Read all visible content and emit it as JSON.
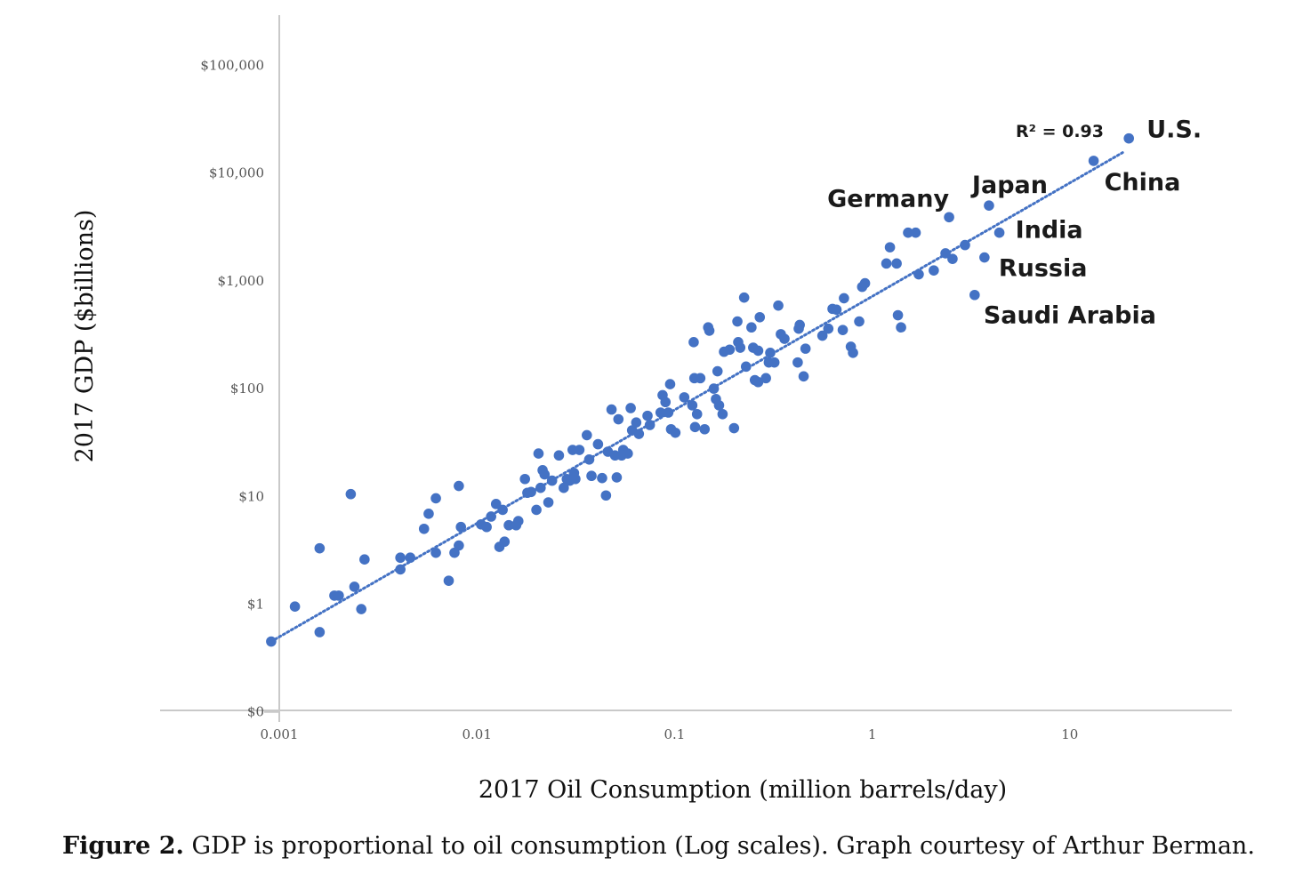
{
  "chart_data": {
    "type": "scatter",
    "title": "",
    "xlabel": "2017 Oil Consumption (million barrels/day)",
    "ylabel": "2017 GDP ($billions)",
    "xscale": "log",
    "yscale": "log",
    "xlim": [
      0.00085,
      70
    ],
    "ylim": [
      0.1,
      300000
    ],
    "x_ticks": [
      {
        "value": 0.001,
        "label": "0.001"
      },
      {
        "value": 0.01,
        "label": "0.01"
      },
      {
        "value": 0.1,
        "label": "0.1"
      },
      {
        "value": 1,
        "label": "1"
      },
      {
        "value": 10,
        "label": "10"
      }
    ],
    "y_ticks": [
      {
        "value": 0.1,
        "label": "$0"
      },
      {
        "value": 1,
        "label": "$1"
      },
      {
        "value": 10,
        "label": "$10"
      },
      {
        "value": 100,
        "label": "$100"
      },
      {
        "value": 1000,
        "label": "$1,000"
      },
      {
        "value": 10000,
        "label": "$10,000"
      },
      {
        "value": 100000,
        "label": "$100,000"
      }
    ],
    "marker_color": "#4472c4",
    "trendline": {
      "style": "dotted",
      "color": "#4472c4",
      "x": [
        0.00091,
        18.5
      ],
      "y": [
        0.45,
        15500
      ],
      "r_squared_label": "R² = 0.93"
    },
    "labeled_points": [
      {
        "name": "U.S.",
        "x": 19.9,
        "y": 21000
      },
      {
        "name": "China",
        "x": 13.2,
        "y": 13000
      },
      {
        "name": "Japan",
        "x": 3.9,
        "y": 5000
      },
      {
        "name": "Germany",
        "x": 2.45,
        "y": 3900
      },
      {
        "name": "India",
        "x": 4.4,
        "y": 2800
      },
      {
        "name": "Russia",
        "x": 3.7,
        "y": 1650
      },
      {
        "name": "Saudi Arabia",
        "x": 3.3,
        "y": 740
      }
    ],
    "points": [
      [
        0.00091,
        0.45
      ],
      [
        0.0012,
        0.95
      ],
      [
        0.0016,
        0.55
      ],
      [
        0.0016,
        3.3
      ],
      [
        0.0019,
        1.2
      ],
      [
        0.002,
        1.2
      ],
      [
        0.0023,
        10.5
      ],
      [
        0.0024,
        1.45
      ],
      [
        0.0026,
        0.9
      ],
      [
        0.0027,
        2.6
      ],
      [
        0.0041,
        2.1
      ],
      [
        0.0041,
        2.7
      ],
      [
        0.0046,
        2.7
      ],
      [
        0.0054,
        5.0
      ],
      [
        0.0057,
        6.9
      ],
      [
        0.0062,
        9.6
      ],
      [
        0.0062,
        3.0
      ],
      [
        0.0072,
        1.65
      ],
      [
        0.0077,
        3.0
      ],
      [
        0.0081,
        12.5
      ],
      [
        0.0081,
        3.5
      ],
      [
        0.0083,
        5.2
      ],
      [
        0.0105,
        5.5
      ],
      [
        0.0112,
        5.2
      ],
      [
        0.0118,
        6.5
      ],
      [
        0.0125,
        8.5
      ],
      [
        0.013,
        3.4
      ],
      [
        0.0135,
        7.5
      ],
      [
        0.0138,
        3.8
      ],
      [
        0.0145,
        5.4
      ],
      [
        0.0158,
        5.4
      ],
      [
        0.0162,
        5.9
      ],
      [
        0.0175,
        14.5
      ],
      [
        0.018,
        10.8
      ],
      [
        0.0188,
        11.0
      ],
      [
        0.02,
        7.5
      ],
      [
        0.0205,
        25.0
      ],
      [
        0.021,
        12.0
      ],
      [
        0.0215,
        17.5
      ],
      [
        0.022,
        16.0
      ],
      [
        0.023,
        8.8
      ],
      [
        0.024,
        14.0
      ],
      [
        0.026,
        24.0
      ],
      [
        0.0275,
        12.0
      ],
      [
        0.0285,
        14.5
      ],
      [
        0.0295,
        14.0
      ],
      [
        0.0305,
        27.0
      ],
      [
        0.031,
        16.5
      ],
      [
        0.0315,
        14.5
      ],
      [
        0.033,
        27.0
      ],
      [
        0.036,
        37.0
      ],
      [
        0.037,
        22.0
      ],
      [
        0.038,
        15.5
      ],
      [
        0.041,
        30.5
      ],
      [
        0.043,
        14.8
      ],
      [
        0.045,
        10.2
      ],
      [
        0.046,
        26.0
      ],
      [
        0.048,
        64.0
      ],
      [
        0.05,
        24.0
      ],
      [
        0.051,
        15.0
      ],
      [
        0.052,
        52.0
      ],
      [
        0.054,
        24.0
      ],
      [
        0.055,
        27.0
      ],
      [
        0.058,
        25.0
      ],
      [
        0.06,
        66.0
      ],
      [
        0.061,
        41.0
      ],
      [
        0.064,
        48.5
      ],
      [
        0.066,
        38.0
      ],
      [
        0.073,
        56.0
      ],
      [
        0.075,
        46.0
      ],
      [
        0.085,
        60.0
      ],
      [
        0.087,
        87.0
      ],
      [
        0.09,
        75.0
      ],
      [
        0.093,
        60.0
      ],
      [
        0.095,
        110.0
      ],
      [
        0.096,
        42.0
      ],
      [
        0.101,
        39.0
      ],
      [
        0.112,
        83.0
      ],
      [
        0.123,
        70.0
      ],
      [
        0.125,
        270.0
      ],
      [
        0.126,
        125.0
      ],
      [
        0.127,
        44.0
      ],
      [
        0.13,
        58.0
      ],
      [
        0.135,
        125.0
      ],
      [
        0.142,
        42.0
      ],
      [
        0.148,
        370.0
      ],
      [
        0.15,
        345.0
      ],
      [
        0.158,
        100.0
      ],
      [
        0.162,
        80.0
      ],
      [
        0.165,
        145.0
      ],
      [
        0.168,
        70.0
      ],
      [
        0.175,
        58.0
      ],
      [
        0.178,
        220.0
      ],
      [
        0.19,
        230.0
      ],
      [
        0.2,
        43.0
      ],
      [
        0.208,
        420.0
      ],
      [
        0.21,
        270.0
      ],
      [
        0.215,
        240.0
      ],
      [
        0.225,
        700.0
      ],
      [
        0.23,
        160.0
      ],
      [
        0.245,
        370.0
      ],
      [
        0.25,
        240.0
      ],
      [
        0.255,
        120.0
      ],
      [
        0.265,
        225.0
      ],
      [
        0.265,
        115.0
      ],
      [
        0.27,
        460.0
      ],
      [
        0.29,
        125.0
      ],
      [
        0.3,
        175.0
      ],
      [
        0.305,
        215.0
      ],
      [
        0.32,
        175.0
      ],
      [
        0.335,
        590.0
      ],
      [
        0.345,
        320.0
      ],
      [
        0.36,
        290.0
      ],
      [
        0.42,
        175.0
      ],
      [
        0.425,
        360.0
      ],
      [
        0.43,
        390.0
      ],
      [
        0.45,
        130.0
      ],
      [
        0.46,
        235.0
      ],
      [
        0.56,
        310.0
      ],
      [
        0.6,
        360.0
      ],
      [
        0.63,
        550.0
      ],
      [
        0.66,
        540.0
      ],
      [
        0.71,
        350.0
      ],
      [
        0.72,
        690.0
      ],
      [
        0.78,
        245.0
      ],
      [
        0.8,
        215.0
      ],
      [
        0.86,
        420.0
      ],
      [
        0.89,
        880.0
      ],
      [
        0.92,
        950.0
      ],
      [
        1.18,
        1450.0
      ],
      [
        1.23,
        2050.0
      ],
      [
        1.33,
        1450.0
      ],
      [
        1.35,
        480.0
      ],
      [
        1.4,
        370.0
      ],
      [
        1.52,
        2800.0
      ],
      [
        1.66,
        2800.0
      ],
      [
        1.72,
        1150.0
      ],
      [
        2.05,
        1250.0
      ],
      [
        2.35,
        1800.0
      ],
      [
        2.55,
        1600.0
      ],
      [
        2.95,
        2150.0
      ]
    ]
  },
  "caption": {
    "label": "Figure 2.",
    "text": " GDP is proportional to oil consumption (Log scales). Graph courtesy of Arthur Berman."
  }
}
